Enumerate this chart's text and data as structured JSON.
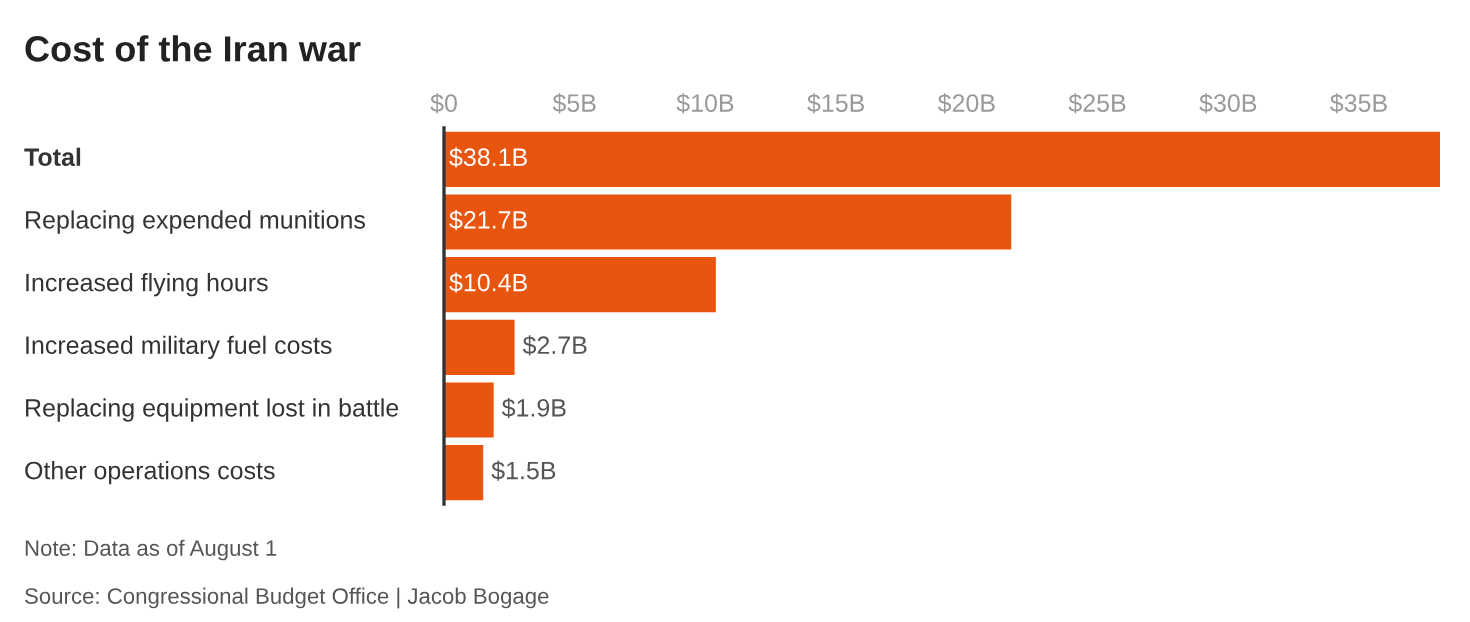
{
  "chart_data": {
    "type": "bar",
    "orientation": "horizontal",
    "title": "Cost of the Iran war",
    "categories": [
      "Total",
      "Replacing expended munitions",
      "Increased flying hours",
      "Increased military fuel costs",
      "Replacing equipment lost in battle",
      "Other operations costs"
    ],
    "values": [
      38.1,
      21.7,
      10.4,
      2.7,
      1.9,
      1.5
    ],
    "value_labels": [
      "$38.1B",
      "$21.7B",
      "$10.4B",
      "$2.7B",
      "$1.9B",
      "$1.5B"
    ],
    "color": "#e8550f",
    "xlim": [
      0,
      38.1
    ],
    "xticks": [
      {
        "value": 0,
        "label": "$0"
      },
      {
        "value": 5,
        "label": "$5B"
      },
      {
        "value": 10,
        "label": "$10B"
      },
      {
        "value": 15,
        "label": "$15B"
      },
      {
        "value": 20,
        "label": "$20B"
      },
      {
        "value": 25,
        "label": "$25B"
      },
      {
        "value": 30,
        "label": "$30B"
      },
      {
        "value": 35,
        "label": "$35B"
      }
    ],
    "grid": false,
    "annotations": [
      "Note: Data as of August 1",
      "Source: Congressional Budget Office | Jacob Bogage"
    ]
  }
}
